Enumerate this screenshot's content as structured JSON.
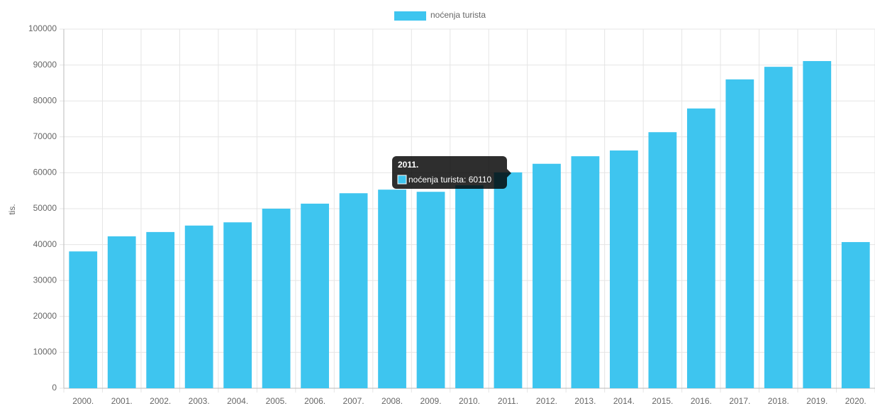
{
  "chart_data": {
    "type": "bar",
    "y_label": "tis.",
    "categories": [
      "2000.",
      "2001.",
      "2002.",
      "2003.",
      "2004.",
      "2005.",
      "2006.",
      "2007.",
      "2008.",
      "2009.",
      "2010.",
      "2011.",
      "2012.",
      "2013.",
      "2014.",
      "2015.",
      "2016.",
      "2017.",
      "2018.",
      "2019.",
      "2020."
    ],
    "series": [
      {
        "name": "noćenja turista",
        "color": "#3ec5ef",
        "values": [
          38100,
          42300,
          43500,
          45300,
          46200,
          50000,
          51400,
          54300,
          55300,
          54700,
          56500,
          60110,
          62500,
          64600,
          66200,
          71300,
          77900,
          86000,
          89500,
          91100,
          40700
        ]
      }
    ],
    "ylim": [
      0,
      100000
    ],
    "yticks": [
      0,
      10000,
      20000,
      30000,
      40000,
      50000,
      60000,
      70000,
      80000,
      90000,
      100000
    ],
    "grid": true,
    "legend": "top",
    "tooltip": {
      "title": "2011.",
      "text": "noćenja turista: 60110"
    }
  }
}
